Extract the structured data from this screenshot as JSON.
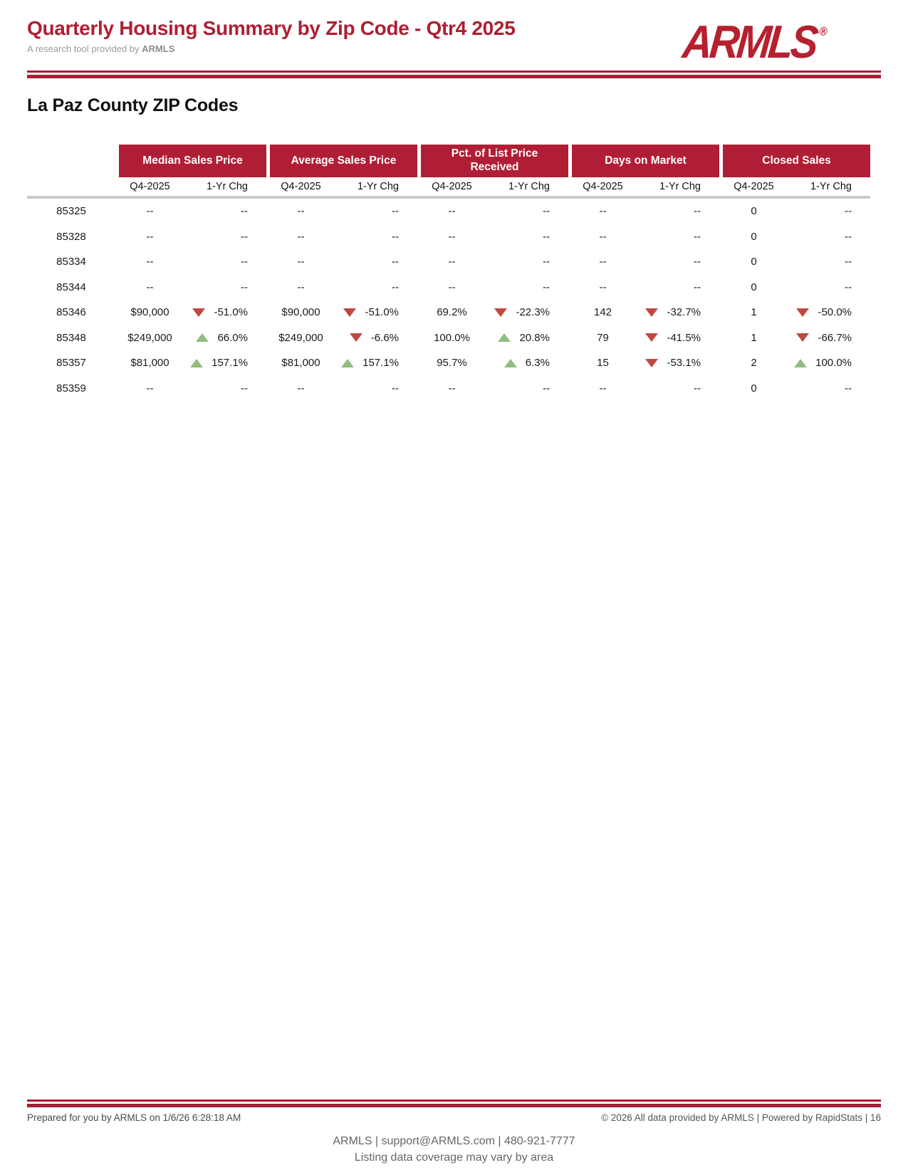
{
  "header": {
    "title": "Quarterly Housing Summary by Zip Code - Qtr4 2025",
    "subtitle_prefix": "A research tool provided by ",
    "subtitle_brand": "ARMLS",
    "logo_text": "ARMLS",
    "logo_registered_mark": "®"
  },
  "section_title": "La Paz County ZIP Codes",
  "colors": {
    "brand_red": "#AE1E32",
    "band_red": "#B01E35",
    "rule_red": "#A32035",
    "divider_gray": "#C9C9C9",
    "trend_up_green": "#8FBE7D",
    "trend_down_red": "#C1483F"
  },
  "icons": {
    "trend_up": "trend-up-icon",
    "trend_down": "trend-down-icon"
  },
  "table": {
    "column_groups": [
      "Median Sales Price",
      "Average Sales Price",
      "Pct. of List Price Received",
      "Days on Market",
      "Closed Sales"
    ],
    "subheaders": {
      "period": "Q4-2025",
      "change": "1-Yr Chg"
    },
    "no_data_placeholder": "--",
    "rows": [
      {
        "zip": "85325",
        "groups": [
          {
            "q4": "--",
            "chg": "--",
            "trend": null
          },
          {
            "q4": "--",
            "chg": "--",
            "trend": null
          },
          {
            "q4": "--",
            "chg": "--",
            "trend": null
          },
          {
            "q4": "--",
            "chg": "--",
            "trend": null
          },
          {
            "q4": "0",
            "chg": "--",
            "trend": null
          }
        ]
      },
      {
        "zip": "85328",
        "groups": [
          {
            "q4": "--",
            "chg": "--",
            "trend": null
          },
          {
            "q4": "--",
            "chg": "--",
            "trend": null
          },
          {
            "q4": "--",
            "chg": "--",
            "trend": null
          },
          {
            "q4": "--",
            "chg": "--",
            "trend": null
          },
          {
            "q4": "0",
            "chg": "--",
            "trend": null
          }
        ]
      },
      {
        "zip": "85334",
        "groups": [
          {
            "q4": "--",
            "chg": "--",
            "trend": null
          },
          {
            "q4": "--",
            "chg": "--",
            "trend": null
          },
          {
            "q4": "--",
            "chg": "--",
            "trend": null
          },
          {
            "q4": "--",
            "chg": "--",
            "trend": null
          },
          {
            "q4": "0",
            "chg": "--",
            "trend": null
          }
        ]
      },
      {
        "zip": "85344",
        "groups": [
          {
            "q4": "--",
            "chg": "--",
            "trend": null
          },
          {
            "q4": "--",
            "chg": "--",
            "trend": null
          },
          {
            "q4": "--",
            "chg": "--",
            "trend": null
          },
          {
            "q4": "--",
            "chg": "--",
            "trend": null
          },
          {
            "q4": "0",
            "chg": "--",
            "trend": null
          }
        ]
      },
      {
        "zip": "85346",
        "groups": [
          {
            "q4": "$90,000",
            "chg": "-51.0%",
            "trend": "down"
          },
          {
            "q4": "$90,000",
            "chg": "-51.0%",
            "trend": "down"
          },
          {
            "q4": "69.2%",
            "chg": "-22.3%",
            "trend": "down"
          },
          {
            "q4": "142",
            "chg": "-32.7%",
            "trend": "down"
          },
          {
            "q4": "1",
            "chg": "-50.0%",
            "trend": "down"
          }
        ]
      },
      {
        "zip": "85348",
        "groups": [
          {
            "q4": "$249,000",
            "chg": "66.0%",
            "trend": "up"
          },
          {
            "q4": "$249,000",
            "chg": "-6.6%",
            "trend": "down"
          },
          {
            "q4": "100.0%",
            "chg": "20.8%",
            "trend": "up"
          },
          {
            "q4": "79",
            "chg": "-41.5%",
            "trend": "down"
          },
          {
            "q4": "1",
            "chg": "-66.7%",
            "trend": "down"
          }
        ]
      },
      {
        "zip": "85357",
        "groups": [
          {
            "q4": "$81,000",
            "chg": "157.1%",
            "trend": "up"
          },
          {
            "q4": "$81,000",
            "chg": "157.1%",
            "trend": "up"
          },
          {
            "q4": "95.7%",
            "chg": "6.3%",
            "trend": "up"
          },
          {
            "q4": "15",
            "chg": "-53.1%",
            "trend": "down"
          },
          {
            "q4": "2",
            "chg": "100.0%",
            "trend": "up"
          }
        ]
      },
      {
        "zip": "85359",
        "groups": [
          {
            "q4": "--",
            "chg": "--",
            "trend": null
          },
          {
            "q4": "--",
            "chg": "--",
            "trend": null
          },
          {
            "q4": "--",
            "chg": "--",
            "trend": null
          },
          {
            "q4": "--",
            "chg": "--",
            "trend": null
          },
          {
            "q4": "0",
            "chg": "--",
            "trend": null
          }
        ]
      }
    ]
  },
  "footer": {
    "prepared": "Prepared for you by ARMLS on 1/6/26 6:28:18 AM",
    "copyright": "© 2026 All data provided by ARMLS | Powered by RapidStats  | 16",
    "contact": "ARMLS | support@ARMLS.com | 480-921-7777",
    "coverage_note": "Listing data coverage may vary by area"
  }
}
